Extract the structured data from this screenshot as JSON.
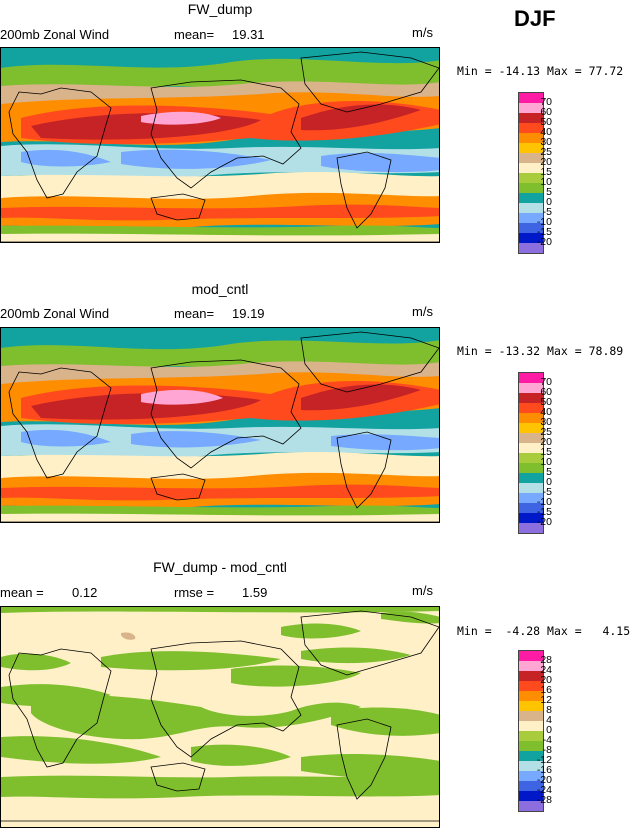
{
  "season": "DJF",
  "units": "m/s",
  "palette_full": [
    "#ff1ca5",
    "#ffa6d5",
    "#c62326",
    "#ff4a1d",
    "#ff8d00",
    "#ffc400",
    "#ffe072",
    "#d9b38a",
    "#fff0c8",
    "#a9cc3d",
    "#7fbf2e",
    "#12a2a0",
    "#b3e0e6",
    "#76a9ff",
    "#3e64e3",
    "#0018c8",
    "#8d6ede"
  ],
  "panels": [
    {
      "title": "FW_dump",
      "field": "200mb Zonal Wind",
      "stat1_label": "mean=",
      "stat1_value": "19.31",
      "stat2_label": "",
      "stat2_value": "",
      "units": "m/s",
      "min_label": "Min =",
      "min_value": "-14.13",
      "max_label": "Max =",
      "max_value": "77.72",
      "levels": [
        "70",
        "60",
        "50",
        "40",
        "30",
        "25",
        "20",
        "15",
        "10",
        "5",
        "0",
        "-5",
        "-10",
        "-15",
        "-20"
      ]
    },
    {
      "title": "mod_cntl",
      "field": "200mb Zonal Wind",
      "stat1_label": "mean=",
      "stat1_value": "19.19",
      "stat2_label": "",
      "stat2_value": "",
      "units": "m/s",
      "min_label": "Min =",
      "min_value": "-13.32",
      "max_label": "Max =",
      "max_value": "78.89",
      "levels": [
        "70",
        "60",
        "50",
        "40",
        "30",
        "25",
        "20",
        "15",
        "10",
        "5",
        "0",
        "-5",
        "-10",
        "-15",
        "-20"
      ]
    },
    {
      "title": "FW_dump - mod_cntl",
      "field": "",
      "stat1_label": "mean =",
      "stat1_value": "0.12",
      "stat2_label": "rmse =",
      "stat2_value": "1.59",
      "units": "m/s",
      "min_label": "Min =",
      "min_value": "-4.28",
      "max_label": "Max =",
      "max_value": "4.15",
      "levels": [
        "28",
        "24",
        "20",
        "16",
        "12",
        "8",
        "4",
        "0",
        "-4",
        "-8",
        "-12",
        "-16",
        "-20",
        "-24",
        "-28"
      ]
    }
  ]
}
